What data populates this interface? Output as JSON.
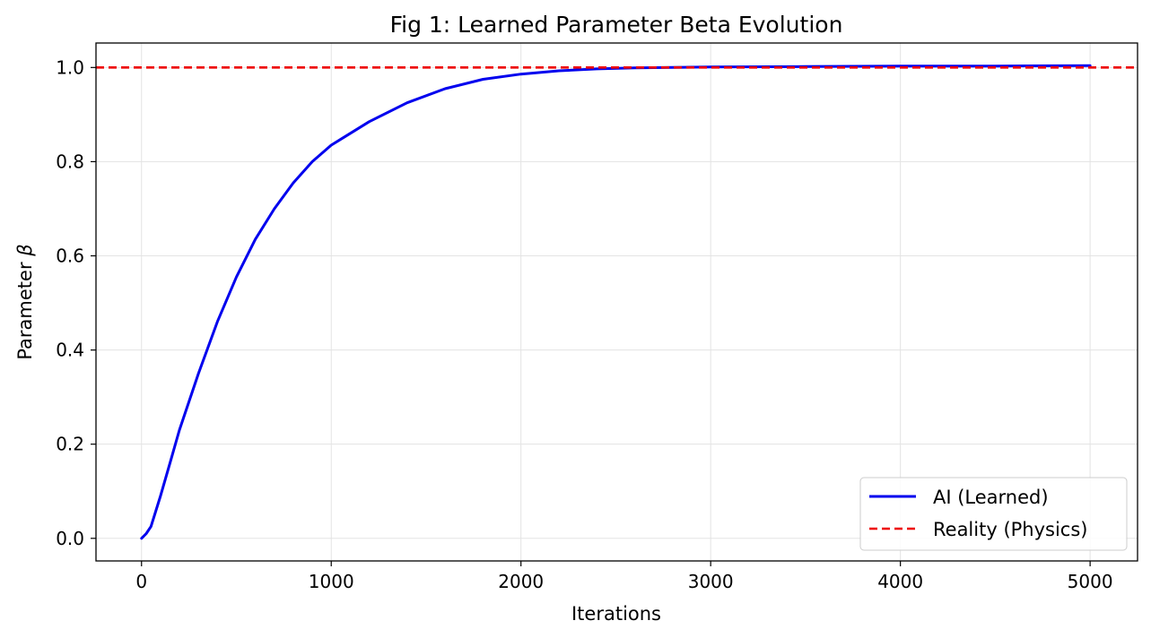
{
  "chart_data": {
    "type": "line",
    "title": "Fig 1: Learned Parameter Beta Evolution",
    "xlabel": "Iterations",
    "ylabel_prefix": "Parameter ",
    "ylabel_symbol": "β",
    "xlim": [
      -240,
      5250
    ],
    "ylim": [
      -0.048,
      1.052
    ],
    "x_ticks": [
      0,
      1000,
      2000,
      3000,
      4000,
      5000
    ],
    "x_tick_labels": [
      "0",
      "1000",
      "2000",
      "3000",
      "4000",
      "5000"
    ],
    "y_ticks": [
      0.0,
      0.2,
      0.4,
      0.6,
      0.8,
      1.0
    ],
    "y_tick_labels": [
      "0.0",
      "0.2",
      "0.4",
      "0.6",
      "0.8",
      "1.0"
    ],
    "grid": true,
    "legend_position": "bottom-right",
    "series": [
      {
        "name": "AI (Learned)",
        "color": "#0000ee",
        "style": "solid",
        "x": [
          0,
          25,
          50,
          100,
          150,
          200,
          300,
          400,
          500,
          600,
          700,
          800,
          900,
          1000,
          1200,
          1400,
          1600,
          1800,
          2000,
          2200,
          2400,
          2600,
          2800,
          3000,
          3500,
          4000,
          4500,
          5000
        ],
        "y": [
          0.0,
          0.01,
          0.025,
          0.09,
          0.16,
          0.23,
          0.35,
          0.46,
          0.555,
          0.635,
          0.7,
          0.755,
          0.8,
          0.835,
          0.885,
          0.925,
          0.955,
          0.975,
          0.986,
          0.993,
          0.997,
          0.999,
          1.0,
          1.001,
          1.002,
          1.003,
          1.003,
          1.004
        ]
      },
      {
        "name": "Reality (Physics)",
        "color": "#ee0000",
        "style": "dashed",
        "y_constant": 1.0
      }
    ]
  }
}
